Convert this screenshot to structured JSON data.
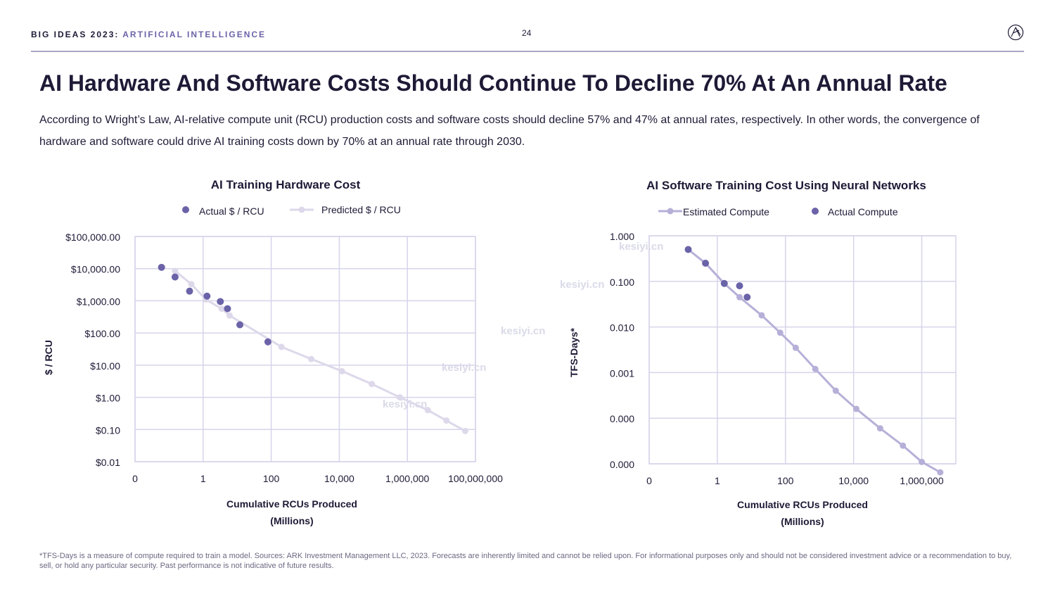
{
  "header": {
    "brand": "BIG IDEAS 2023:",
    "topic": "ARTIFICIAL INTELLIGENCE",
    "page_number": "24"
  },
  "title": "AI Hardware And Software Costs Should Continue To Decline 70% At An Annual Rate",
  "subtitle": "According to Wright’s Law, AI-relative compute unit (RCU) production costs and software costs should decline 57% and 47% at annual rates, respectively. In other words, the convergence of hardware and software could drive AI training costs down by 70% at an annual rate through 2030.",
  "footnote": "*TFS-Days is a measure of compute required to train a model. Sources: ARK Investment Management LLC, 2023. Forecasts are inherently limited and cannot be relied upon. For informational purposes only and should not be considered investment advice or a recommendation to buy, sell, or hold any particular security. Past performance is not indicative of future results.",
  "watermark": "kesiyi.cn",
  "colors": {
    "actual": "#6b63a8",
    "predicted": "#ddd8ea",
    "estimated": "#b6b0d8",
    "grid": "#d6d4ea",
    "text": "#1e1a36"
  },
  "chart_data": [
    {
      "type": "scatter",
      "title": "AI Training Hardware Cost",
      "xlabel": "Cumulative RCUs Produced",
      "xlabel2": "(Millions)",
      "ylabel": "$ / RCU",
      "xscale": "log",
      "yscale": "log",
      "xlim": [
        0.01,
        100000000
      ],
      "ylim": [
        0.01,
        100000
      ],
      "x_ticks": [
        0.01,
        1,
        100,
        10000,
        1000000,
        100000000
      ],
      "x_tick_labels": [
        "0",
        "1",
        "100",
        "10,000",
        "1,000,000",
        "100,000,000"
      ],
      "y_ticks": [
        0.01,
        0.1,
        1,
        10,
        100,
        1000,
        10000,
        100000
      ],
      "y_tick_labels": [
        "$0.01",
        "$0.10",
        "$1.00",
        "$10.00",
        "$100.00",
        "$1,000.00",
        "$10,000.00",
        "$100,000.00"
      ],
      "legend_position": "top",
      "series": [
        {
          "name": "Actual $ / RCU",
          "style": "scatter",
          "x": [
            0.06,
            0.15,
            0.4,
            1.3,
            3.2,
            5.2,
            12,
            80
          ],
          "y": [
            11000,
            5500,
            2000,
            1400,
            950,
            570,
            180,
            53
          ]
        },
        {
          "name": "Predicted $ / RCU",
          "style": "line",
          "x": [
            0.15,
            0.45,
            1.2,
            3.5,
            6,
            200,
            1500,
            12000,
            90000,
            600000,
            4000000,
            14000000,
            50000000
          ],
          "y": [
            8500,
            3300,
            1100,
            570,
            350,
            37,
            15.5,
            6.5,
            2.6,
            1.0,
            0.4,
            0.19,
            0.09
          ]
        }
      ]
    },
    {
      "type": "line",
      "title": "AI Software Training Cost Using Neural Networks",
      "xlabel": "Cumulative RCUs Produced",
      "xlabel2": "(Millions)",
      "ylabel": "TFS-Days*",
      "xscale": "log",
      "yscale": "log",
      "xlim": [
        0.01,
        10000000
      ],
      "ylim": [
        1e-05,
        1
      ],
      "x_ticks": [
        0.01,
        1,
        100,
        10000,
        1000000
      ],
      "x_tick_labels": [
        "0",
        "1",
        "100",
        "10,000",
        "1,000,000"
      ],
      "y_ticks": [
        1e-05,
        0.0001,
        0.001,
        0.01,
        0.1,
        1
      ],
      "y_tick_labels": [
        "0.000",
        "0.000",
        "0.001",
        "0.010",
        "0.100",
        "1.000"
      ],
      "legend_position": "top",
      "series": [
        {
          "name": "Estimated Compute",
          "style": "line",
          "x": [
            0.14,
            0.45,
            1.6,
            4.5,
            20,
            70,
            200,
            750,
            3000,
            12000,
            60000,
            280000,
            1000000,
            3500000
          ],
          "y": [
            0.5,
            0.25,
            0.09,
            0.045,
            0.018,
            0.0075,
            0.0035,
            0.0012,
            0.0004,
            0.00016,
            6e-05,
            2.5e-05,
            1.1e-05,
            6.5e-06
          ]
        },
        {
          "name": "Actual Compute",
          "style": "scatter",
          "x": [
            0.14,
            0.45,
            1.6,
            4.5,
            7.5
          ],
          "y": [
            0.5,
            0.25,
            0.09,
            0.08,
            0.045
          ]
        }
      ]
    }
  ]
}
